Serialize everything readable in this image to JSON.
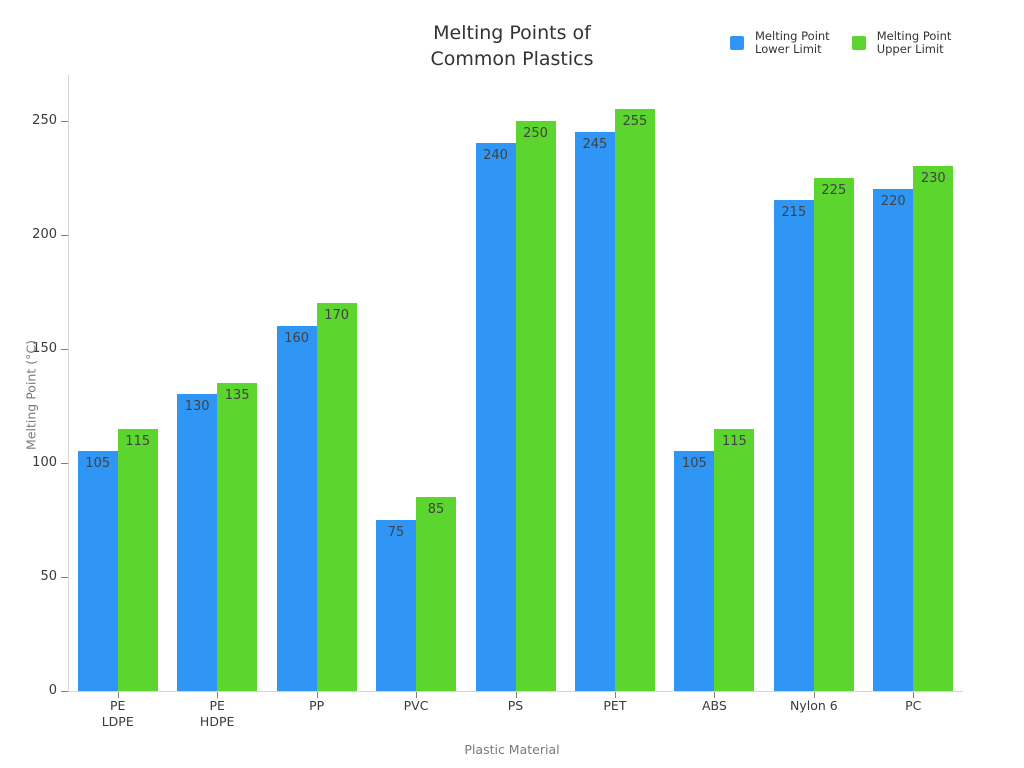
{
  "chart_data": {
    "type": "bar",
    "title": "Melting Points of\nCommon Plastics",
    "xlabel": "Plastic Material",
    "ylabel": "Melting Point (°C)",
    "categories": [
      "PE\nLDPE",
      "PE\nHDPE",
      "PP",
      "PVC",
      "PS",
      "PET",
      "ABS",
      "Nylon 6",
      "PC"
    ],
    "series": [
      {
        "name": "Melting Point\nLower Limit",
        "color": "#2F96F5",
        "values": [
          105,
          130,
          160,
          75,
          240,
          245,
          105,
          215,
          220
        ]
      },
      {
        "name": "Melting Point\nUpper Limit",
        "color": "#5CD62E",
        "values": [
          115,
          135,
          170,
          85,
          250,
          255,
          115,
          225,
          230
        ]
      }
    ],
    "yticks": [
      0,
      50,
      100,
      150,
      200,
      250
    ],
    "ylim": [
      0,
      270
    ],
    "grid": false,
    "legend_position": "top-right",
    "value_labels": true
  },
  "colors": {
    "lower_series": "#2F96F5",
    "upper_series": "#5CD62E",
    "title_text": "#333333",
    "legend_text": "#333333",
    "value_label_text": "#424242",
    "tick_label_text": "#3a3a3a",
    "axis_title_text": "#7a7a7a",
    "axis_line": "#d4d4d4",
    "tick_mark": "#7f7f7f",
    "background": "#ffffff"
  }
}
